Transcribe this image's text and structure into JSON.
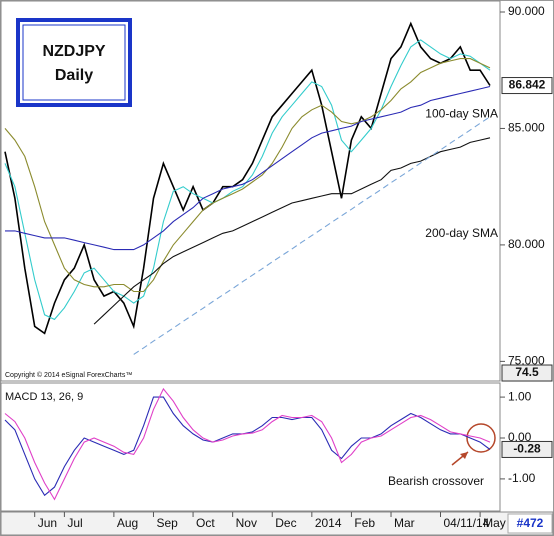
{
  "chart_data": [
    {
      "type": "line",
      "title": "NZDJPY",
      "subtitle": "Daily",
      "ylim": [
        74.2,
        90.3
      ],
      "yticks": [
        {
          "value": 75,
          "label": "75.000"
        },
        {
          "value": 80,
          "label": "80.000"
        },
        {
          "value": 85,
          "label": "85.000"
        },
        {
          "value": 90,
          "label": "90.000"
        }
      ],
      "marker_labels": [
        86.842,
        74.5
      ],
      "note": "Copyright © 2014 eSignal ForexCharts™",
      "series": [
        {
          "color": "#000000",
          "values": [
            84,
            82,
            79,
            76.5,
            76.2,
            77.5,
            78.5,
            79,
            80,
            78.5,
            77.8,
            78,
            77.5,
            76.5,
            79,
            82,
            83.5,
            82.5,
            81.5,
            82.5,
            81.5,
            81.8,
            82.5,
            82.5,
            82.8,
            83.5,
            84.5,
            85.5,
            86,
            86.5,
            87,
            87.5,
            86,
            84,
            82,
            84.5,
            85.5,
            85,
            86.5,
            88,
            88.5,
            89.5,
            88.5,
            88,
            87.8,
            88,
            88.5,
            87.5,
            87.5,
            86.842
          ]
        },
        {
          "color": "#33cccc",
          "values": [
            83.5,
            82.5,
            80.5,
            78.5,
            77,
            76.8,
            77.3,
            78,
            78.8,
            79,
            78.5,
            78,
            77.8,
            77.5,
            77.8,
            79,
            81,
            82.3,
            82.5,
            82.2,
            82,
            81.8,
            82,
            82.3,
            82.5,
            83,
            83.8,
            84.8,
            85.5,
            86,
            86.5,
            87,
            86.8,
            86,
            84.5,
            84,
            84.5,
            85,
            85.8,
            86.8,
            87.7,
            88.5,
            88.8,
            88.5,
            88.2,
            88,
            88.2,
            88.1,
            87.8,
            87.5
          ]
        },
        {
          "color": "#8b8b2e",
          "values": [
            85,
            84.5,
            83.8,
            82.5,
            81,
            80,
            79,
            78.5,
            78.3,
            78.2,
            78.2,
            78.3,
            78.3,
            78,
            78,
            78.5,
            79.3,
            80,
            80.5,
            81,
            81.5,
            81.8,
            82,
            82.2,
            82.4,
            82.7,
            83,
            83.5,
            84.2,
            85,
            85.5,
            85.8,
            86,
            85.7,
            85.3,
            85.2,
            85.3,
            85.5,
            85.8,
            86.2,
            86.7,
            87,
            87.4,
            87.6,
            87.8,
            87.9,
            88,
            88,
            87.8,
            87.6
          ]
        },
        {
          "name": "100-day SMA",
          "color": "#2b2bb5",
          "values": [
            80.6,
            80.6,
            80.5,
            80.4,
            80.3,
            80.3,
            80.3,
            80.2,
            80.1,
            80.0,
            79.9,
            79.8,
            79.8,
            79.8,
            80.0,
            80.3,
            80.6,
            81.0,
            81.3,
            81.6,
            82.0,
            82.2,
            82.4,
            82.5,
            82.6,
            82.8,
            83.1,
            83.4,
            83.7,
            84.0,
            84.3,
            84.6,
            84.8,
            84.9,
            85.0,
            85.1,
            85.3,
            85.4,
            85.5,
            85.6,
            85.7,
            85.9,
            86.0,
            86.2,
            86.3,
            86.4,
            86.5,
            86.6,
            86.7,
            86.8
          ]
        },
        {
          "name": "200-day SMA",
          "color": "#111111",
          "values": [
            null,
            null,
            null,
            null,
            null,
            null,
            null,
            null,
            null,
            76.6,
            77.0,
            77.4,
            77.8,
            78.2,
            78.5,
            78.8,
            79.2,
            79.5,
            79.7,
            79.9,
            80.1,
            80.3,
            80.5,
            80.6,
            80.8,
            81.0,
            81.2,
            81.4,
            81.6,
            81.8,
            81.9,
            82.0,
            82.1,
            82.2,
            82.2,
            82.2,
            82.4,
            82.6,
            82.8,
            83.2,
            83.3,
            83.5,
            83.6,
            83.8,
            84.0,
            84.1,
            84.2,
            84.4,
            84.5,
            84.6
          ]
        },
        {
          "color": "#7aa6d8",
          "dash": true,
          "values": [
            null,
            null,
            null,
            null,
            null,
            null,
            null,
            null,
            null,
            null,
            null,
            null,
            null,
            75.3,
            75.58,
            75.87,
            76.15,
            76.43,
            76.72,
            77.0,
            77.28,
            77.57,
            77.85,
            78.13,
            78.42,
            78.7,
            78.98,
            79.27,
            79.55,
            79.83,
            80.12,
            80.4,
            80.68,
            80.97,
            81.25,
            81.53,
            81.82,
            82.1,
            82.38,
            82.67,
            82.95,
            83.23,
            83.52,
            83.8,
            84.08,
            84.37,
            84.65,
            84.93,
            85.22,
            85.5
          ]
        }
      ]
    },
    {
      "type": "line",
      "title": "MACD 13, 26, 9",
      "ylim": [
        -1.76,
        1.32
      ],
      "yticks": [
        {
          "value": 1,
          "label": "1.00"
        },
        {
          "value": 0,
          "label": "0.00"
        },
        {
          "value": -1,
          "label": "-1.00"
        }
      ],
      "marker_labels": [
        -0.28
      ],
      "annotation": "Bearish crossover",
      "corner_label": "#472",
      "categories": [
        null,
        null,
        null,
        "Jun",
        null,
        null,
        "Jul",
        null,
        null,
        null,
        null,
        "Aug",
        null,
        null,
        null,
        "Sep",
        null,
        null,
        null,
        "Oct",
        null,
        null,
        null,
        "Nov",
        null,
        null,
        null,
        "Dec",
        null,
        null,
        null,
        "2014",
        null,
        null,
        null,
        "Feb",
        null,
        null,
        null,
        "Mar",
        null,
        null,
        null,
        null,
        "04/11/14",
        null,
        null,
        null,
        "May",
        null
      ],
      "series": [
        {
          "color": "#2b2bb5",
          "values": [
            0.44,
            0.2,
            -0.4,
            -1.0,
            -1.4,
            -1.2,
            -0.7,
            -0.3,
            0.0,
            -0.1,
            -0.2,
            -0.3,
            -0.4,
            -0.3,
            0.3,
            1.0,
            1.0,
            0.6,
            0.3,
            0.1,
            -0.05,
            -0.1,
            0.0,
            0.1,
            0.1,
            0.15,
            0.3,
            0.5,
            0.5,
            0.45,
            0.5,
            0.5,
            0.2,
            -0.3,
            -0.5,
            -0.2,
            0.0,
            0.0,
            0.1,
            0.3,
            0.45,
            0.6,
            0.5,
            0.35,
            0.2,
            0.1,
            0.1,
            0.0,
            -0.1,
            -0.28
          ]
        },
        {
          "color": "#e040c8",
          "values": [
            0.6,
            0.4,
            0.0,
            -0.6,
            -1.1,
            -1.5,
            -1.0,
            -0.5,
            -0.1,
            0.0,
            -0.1,
            -0.2,
            -0.35,
            -0.4,
            0.0,
            0.7,
            1.2,
            0.9,
            0.5,
            0.2,
            0.0,
            -0.1,
            -0.05,
            0.05,
            0.1,
            0.12,
            0.2,
            0.4,
            0.55,
            0.5,
            0.5,
            0.55,
            0.4,
            0.0,
            -0.6,
            -0.4,
            -0.1,
            0.0,
            0.05,
            0.2,
            0.35,
            0.5,
            0.55,
            0.45,
            0.3,
            0.15,
            0.1,
            0.05,
            0.0,
            -0.1
          ]
        }
      ]
    }
  ]
}
